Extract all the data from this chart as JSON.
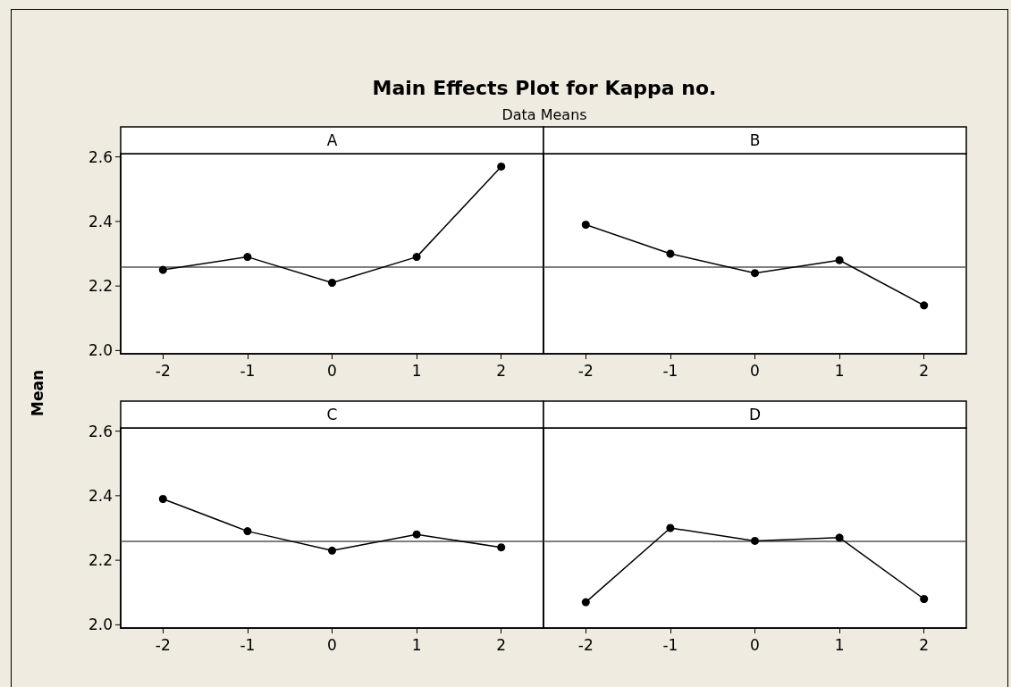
{
  "chart_data": [
    {
      "type": "line",
      "title": "A",
      "ylabel": "Mean",
      "annotations": [
        "Main Effects Plot for Kappa no.",
        "Data Means"
      ],
      "x": [
        -2,
        -1,
        0,
        1,
        2
      ],
      "series": [
        {
          "color": "#000000",
          "values": [
            2.25,
            2.29,
            2.21,
            2.29,
            2.57
          ]
        }
      ],
      "xlim": [
        -2.5,
        2.5
      ],
      "xticks": [
        -2,
        -1,
        0,
        1,
        2
      ],
      "ylim": [
        1.99,
        2.61
      ],
      "yticks": [
        {
          "value": 2,
          "label": "2.0"
        },
        2.2,
        2.4,
        2.6
      ],
      "ref_lines": [
        {
          "axis": "y",
          "value": 2.26,
          "color": "#555555"
        }
      ],
      "marker": "circle",
      "line_style": "solid"
    },
    {
      "type": "line",
      "title": "B",
      "x": [
        -2,
        -1,
        0,
        1,
        2
      ],
      "series": [
        {
          "color": "#000000",
          "values": [
            2.39,
            2.3,
            2.24,
            2.28,
            2.14
          ]
        }
      ],
      "xlim": [
        -2.5,
        2.5
      ],
      "xticks": [
        -2,
        -1,
        0,
        1,
        2
      ],
      "ylim": [
        1.99,
        2.61
      ],
      "yticks": [
        2.0,
        2.2,
        2.4,
        2.6
      ],
      "ref_lines": [
        {
          "axis": "y",
          "value": 2.26,
          "color": "#555555"
        }
      ],
      "marker": "circle",
      "line_style": "solid",
      "tick_labels": "x"
    },
    {
      "type": "line",
      "title": "C",
      "x": [
        -2,
        -1,
        0,
        1,
        2
      ],
      "series": [
        {
          "color": "#000000",
          "values": [
            2.39,
            2.29,
            2.23,
            2.28,
            2.24
          ]
        }
      ],
      "xlim": [
        -2.5,
        2.5
      ],
      "xticks": [
        -2,
        -1,
        0,
        1,
        2
      ],
      "ylim": [
        1.99,
        2.61
      ],
      "yticks": [
        {
          "value": 2,
          "label": "2.0"
        },
        2.2,
        2.4,
        2.6
      ],
      "ref_lines": [
        {
          "axis": "y",
          "value": 2.26,
          "color": "#555555"
        }
      ],
      "marker": "circle",
      "line_style": "solid"
    },
    {
      "type": "line",
      "title": "D",
      "x": [
        -2,
        -1,
        0,
        1,
        2
      ],
      "series": [
        {
          "color": "#000000",
          "values": [
            2.07,
            2.3,
            2.26,
            2.27,
            2.08
          ]
        }
      ],
      "xlim": [
        -2.5,
        2.5
      ],
      "xticks": [
        -2,
        -1,
        0,
        1,
        2
      ],
      "ylim": [
        1.99,
        2.61
      ],
      "yticks": [
        2.0,
        2.2,
        2.4,
        2.6
      ],
      "ref_lines": [
        {
          "axis": "y",
          "value": 2.26,
          "color": "#555555"
        }
      ],
      "marker": "circle",
      "line_style": "solid",
      "tick_labels": "x"
    }
  ]
}
